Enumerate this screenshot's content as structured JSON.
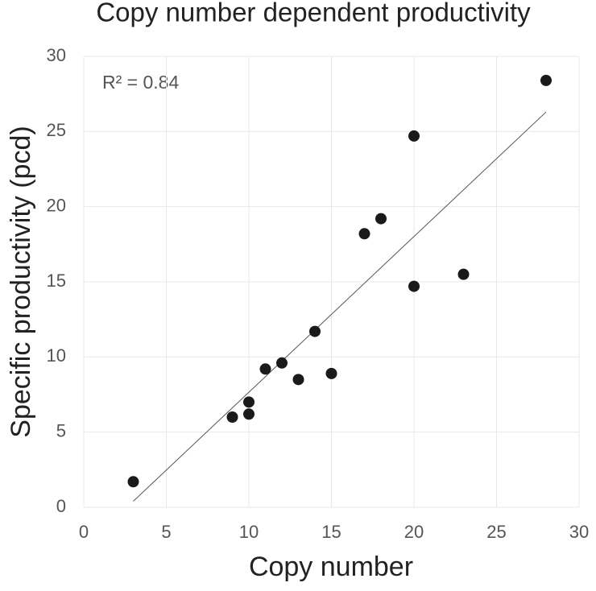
{
  "chart_data": {
    "type": "scatter",
    "title": "Copy number dependent productivity",
    "x_label": "Copy number",
    "y_label": "Specific productivity (pcd)",
    "annotation": "R² = 0.84",
    "series": [
      {
        "color": "#1a1a1a",
        "x": [
          3,
          9,
          10,
          10,
          11,
          12,
          13,
          14,
          15,
          17,
          18,
          20,
          20,
          23,
          28
        ],
        "values": [
          1.7,
          6.0,
          6.2,
          7.0,
          9.2,
          9.6,
          8.5,
          11.7,
          8.9,
          18.2,
          19.2,
          24.7,
          14.7,
          15.5,
          28.4
        ]
      }
    ],
    "trendline": {
      "color": "#555555",
      "x": [
        3,
        28
      ],
      "values": [
        0.4,
        26.3
      ]
    },
    "xlim": [
      0,
      30
    ],
    "xticks": [
      0,
      5,
      10,
      15,
      20,
      25,
      30
    ],
    "ylim": [
      0,
      30
    ],
    "yticks": [
      0,
      5,
      10,
      15,
      20,
      25,
      30
    ],
    "grid": true
  }
}
